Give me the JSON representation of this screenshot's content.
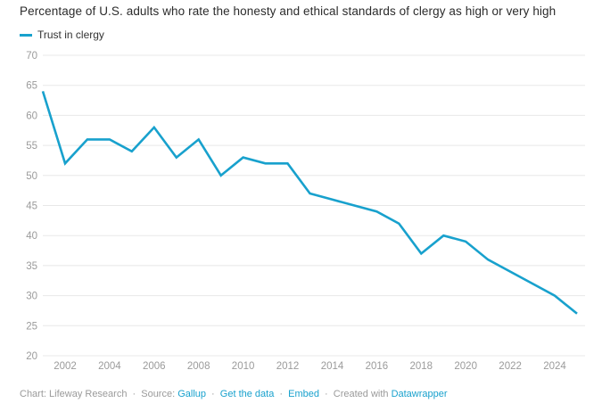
{
  "title": "Percentage of U.S. adults who rate the honesty and ethical standards of clergy as high or very high",
  "legend": {
    "label": "Trust in clergy"
  },
  "colors": {
    "line": "#18a1cd",
    "link": "#18a1cd",
    "grid": "#e8e8e8",
    "tick_text": "#9b9b9b",
    "title_text": "#2b2b2b",
    "footer_text": "#9a9a9a",
    "background": "#ffffff"
  },
  "chart_data": {
    "type": "line",
    "title": "Percentage of U.S. adults who rate the honesty and ethical standards of clergy as high or very high",
    "series": [
      {
        "name": "Trust in clergy",
        "x": [
          2001,
          2002,
          2003,
          2004,
          2005,
          2006,
          2007,
          2008,
          2009,
          2010,
          2011,
          2012,
          2013,
          2014,
          2015,
          2016,
          2017,
          2018,
          2019,
          2020,
          2021,
          2022,
          2023,
          2024,
          2025
        ],
        "values": [
          64,
          52,
          56,
          56,
          54,
          58,
          53,
          56,
          50,
          53,
          52,
          52,
          47,
          46,
          45,
          44,
          42,
          37,
          40,
          39,
          36,
          34,
          32,
          30,
          27
        ]
      }
    ],
    "xlabel": "",
    "ylabel": "",
    "xlim": [
      2001,
      2025
    ],
    "ylim": [
      20,
      70
    ],
    "yticks": [
      70,
      65,
      60,
      55,
      50,
      45,
      40,
      35,
      30,
      25,
      20
    ],
    "xticks": [
      2002,
      2004,
      2006,
      2008,
      2010,
      2012,
      2014,
      2016,
      2018,
      2020,
      2022,
      2024
    ],
    "grid": true,
    "legend_position": "top-left"
  },
  "footer": {
    "separator": "·",
    "parts": [
      {
        "prefix": "Chart: ",
        "text": "Lifeway Research",
        "is_link": false
      },
      {
        "prefix": "Source: ",
        "text": "Gallup",
        "is_link": true
      },
      {
        "prefix": "",
        "text": "Get the data",
        "is_link": true
      },
      {
        "prefix": "",
        "text": "Embed",
        "is_link": true
      },
      {
        "prefix": "Created with ",
        "text": "Datawrapper",
        "is_link": true
      }
    ]
  }
}
